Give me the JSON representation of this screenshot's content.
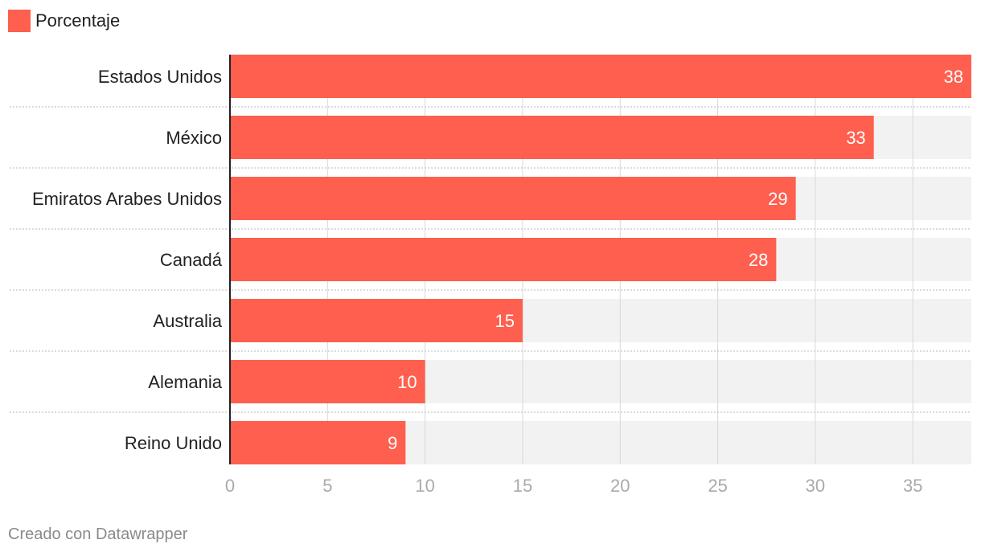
{
  "chart_data": {
    "type": "bar",
    "orientation": "horizontal",
    "legend": {
      "label": "Porcentaje",
      "placement": "top-left"
    },
    "categories": [
      "Estados Unidos",
      "México",
      "Emiratos Arabes Unidos",
      "Canadá",
      "Australia",
      "Alemania",
      "Reino Unido"
    ],
    "series": [
      {
        "name": "Porcentaje",
        "values": [
          38,
          33,
          29,
          28,
          15,
          10,
          9
        ]
      }
    ],
    "xlim": [
      0,
      38
    ],
    "x_ticks": [
      0,
      5,
      10,
      15,
      20,
      25,
      30,
      35
    ],
    "grid": true,
    "colors": {
      "bar": "#ff5f4f",
      "track": "#f2f2f2",
      "grid": "#d8d8d8",
      "tick_label": "#aaaaaa",
      "category_label": "#222222",
      "value_label": "#ffffff"
    }
  },
  "footer": "Creado con Datawrapper"
}
